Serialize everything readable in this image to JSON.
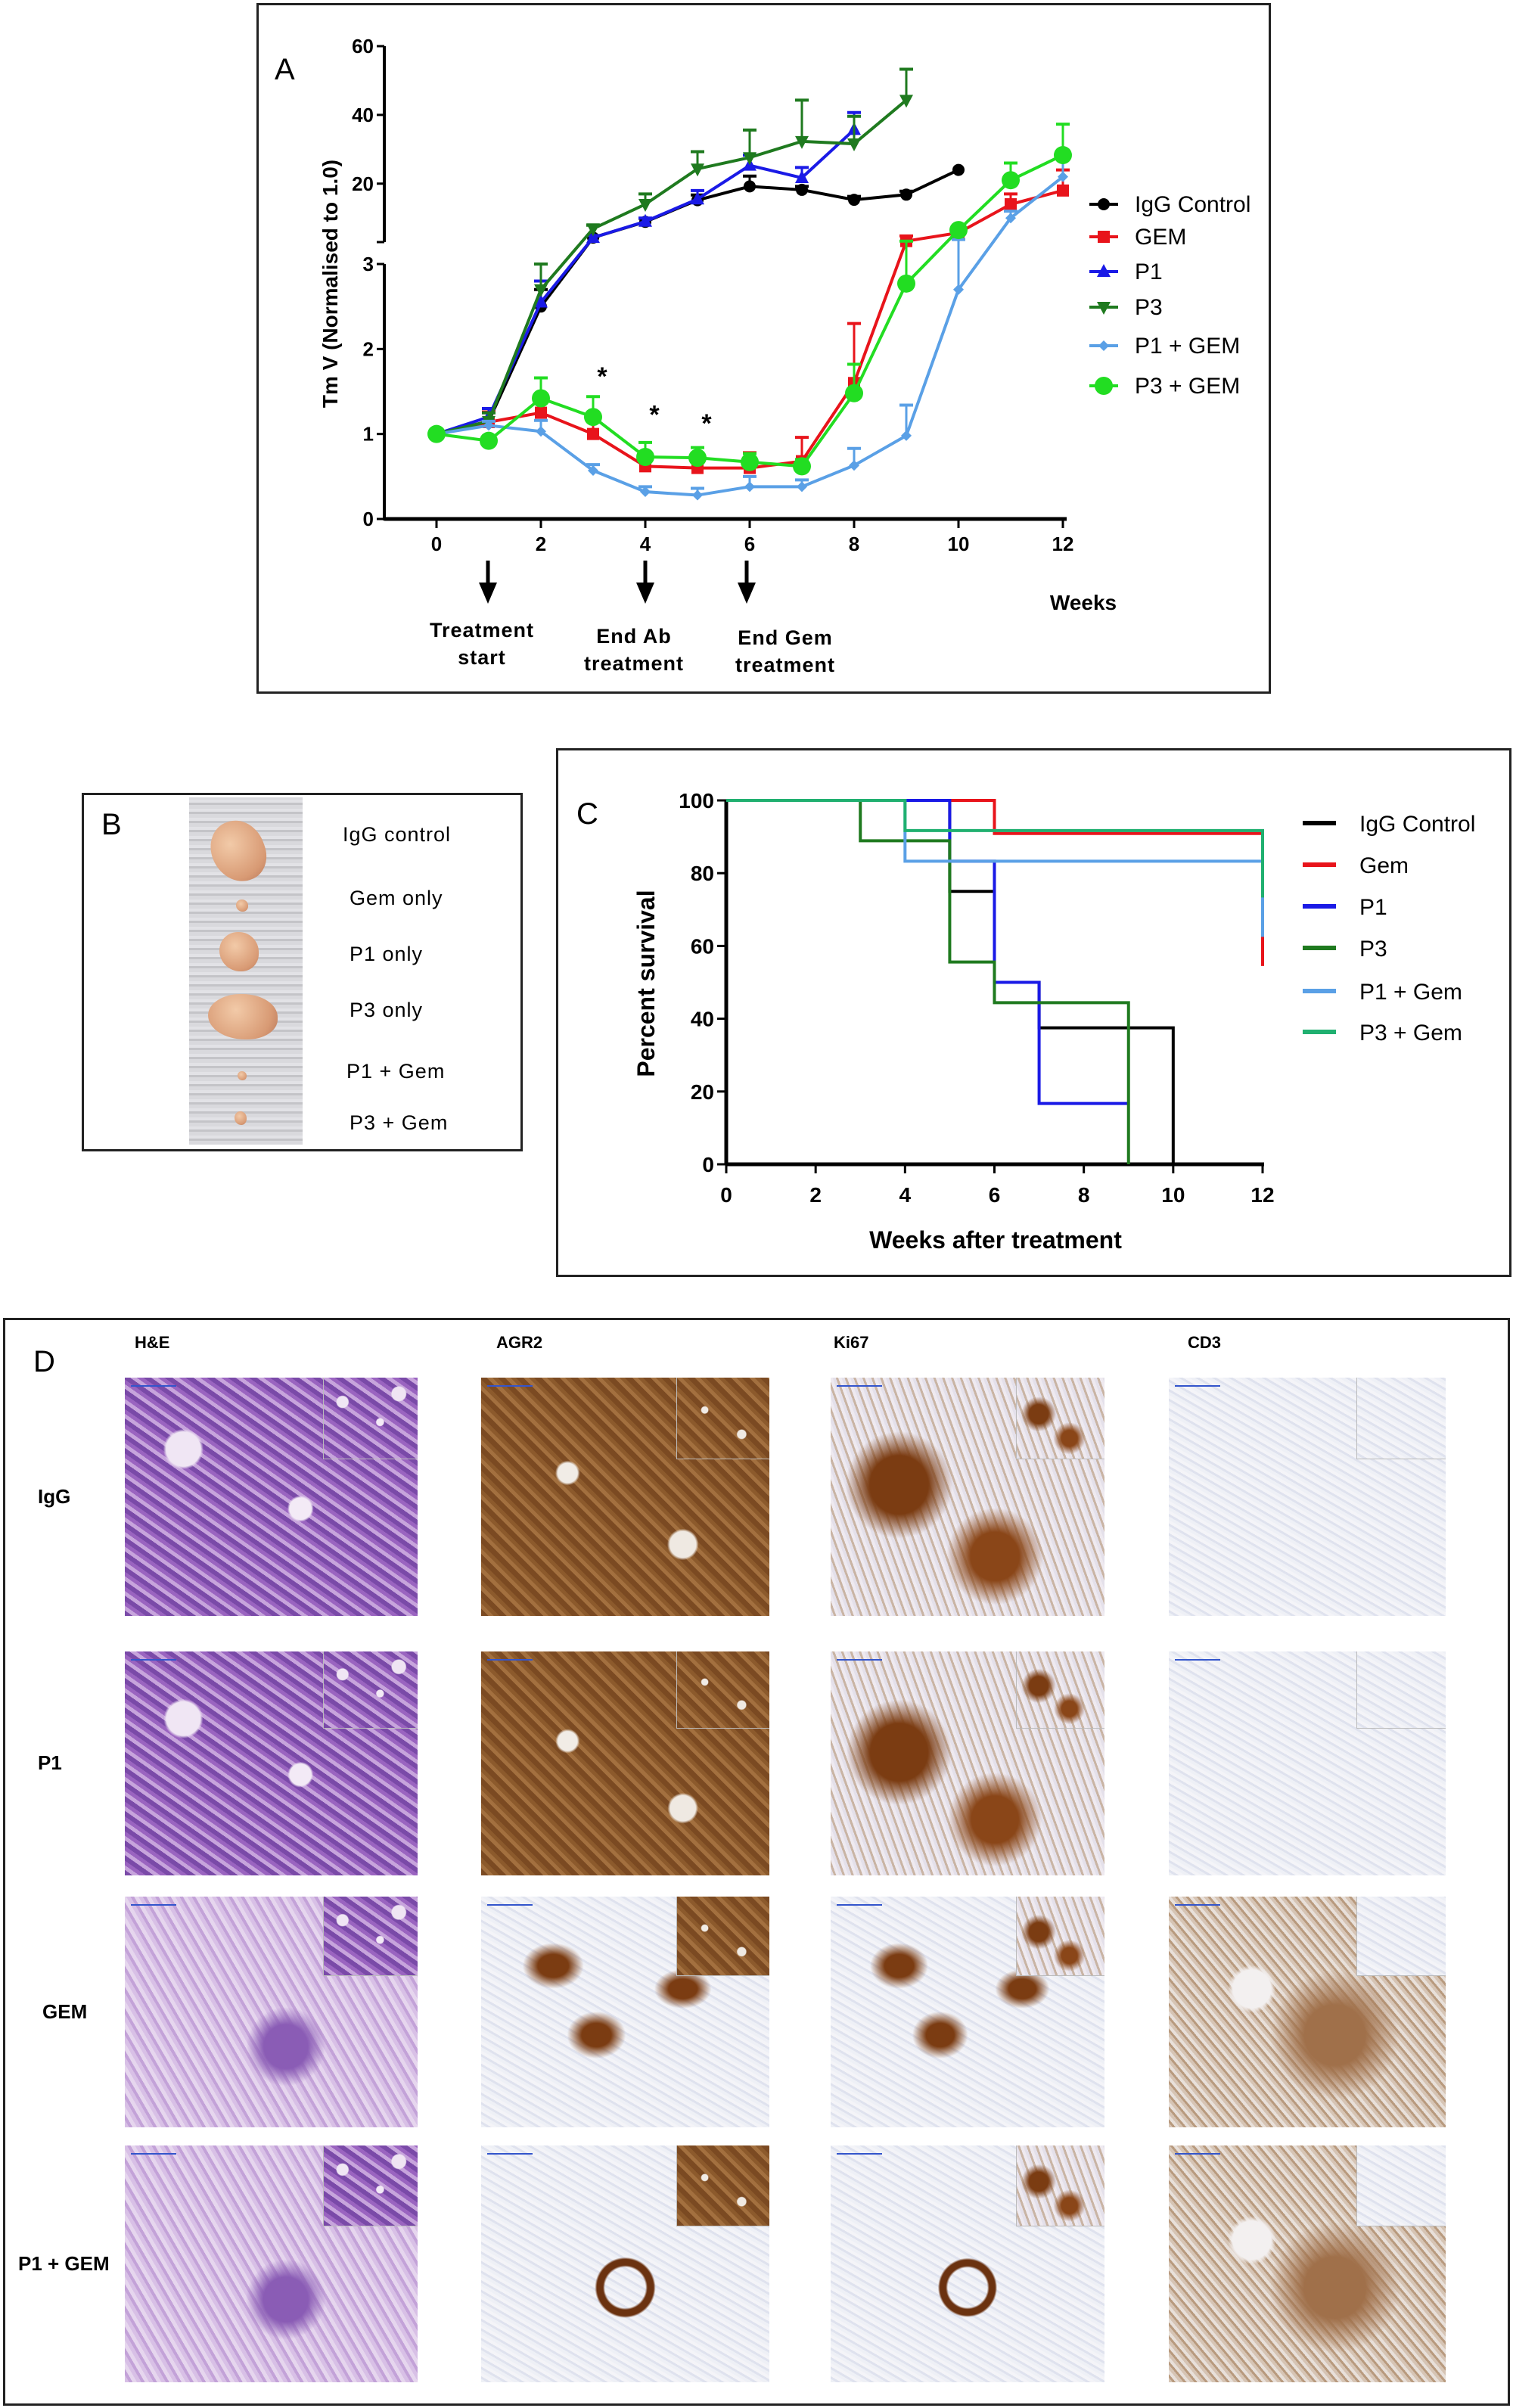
{
  "panel_labels": {
    "a": "A",
    "b": "B",
    "c": "C",
    "d": "D"
  },
  "colors": {
    "igg": "#000000",
    "gem": "#e8141b",
    "p1": "#1a1ae6",
    "p3": "#1f7a1f",
    "p1gem": "#5aa0e6",
    "p3gem": "#22dd22",
    "p3gem_c": "#20b070"
  },
  "chart_data": [
    {
      "type": "line",
      "panel": "A",
      "ylabel": "Tm V (Normalised to 1.0)",
      "xlabel": "Weeks",
      "x_ticks": [
        "0",
        "2",
        "4",
        "6",
        "8",
        "10",
        "12"
      ],
      "xlim": [
        0,
        12
      ],
      "y_axis_segments": [
        {
          "range": [
            0,
            3
          ],
          "ticks": [
            "0",
            "1",
            "2",
            "3"
          ]
        },
        {
          "range": [
            3,
            60
          ],
          "ticks": [
            "20",
            "40",
            "60"
          ]
        }
      ],
      "annotations_significance": [
        {
          "x": 3,
          "y": 1.7,
          "text": "*"
        },
        {
          "x": 4,
          "y": 1.25,
          "text": "*"
        },
        {
          "x": 5,
          "y": 1.15,
          "text": "*"
        }
      ],
      "timeline": [
        {
          "x": 1,
          "label_lines": [
            "Treatment",
            "start"
          ]
        },
        {
          "x": 4,
          "label_lines": [
            "End Ab",
            "treatment"
          ]
        },
        {
          "x": 6,
          "label_lines": [
            "End Gem",
            "treatment"
          ]
        }
      ],
      "series": [
        {
          "name": "IgG Control",
          "color_key": "igg",
          "marker": "circle",
          "x": [
            0,
            1,
            2,
            3,
            4,
            5,
            6,
            7,
            8,
            9,
            10
          ],
          "y": [
            1,
            1.15,
            2.5,
            4.3,
            8.9,
            15.2,
            19.2,
            18.2,
            15.3,
            16.8,
            24
          ],
          "err": [
            0,
            0.1,
            0.2,
            0.5,
            1,
            1.5,
            3,
            1,
            1,
            1,
            0
          ]
        },
        {
          "name": "GEM",
          "color_key": "gem",
          "marker": "square",
          "x": [
            0,
            1,
            2,
            3,
            4,
            5,
            6,
            7,
            8,
            9,
            10,
            11,
            12
          ],
          "y": [
            1,
            1.14,
            1.25,
            1.0,
            0.62,
            0.6,
            0.6,
            0.68,
            1.6,
            3.3,
            5.7,
            14,
            18
          ],
          "err": [
            0,
            0.12,
            0.14,
            0.18,
            0.08,
            0.09,
            0.18,
            0.28,
            0.7,
            1.5,
            1,
            3,
            6
          ]
        },
        {
          "name": "P1",
          "color_key": "p1",
          "marker": "triangle-up",
          "x": [
            0,
            1,
            2,
            3,
            4,
            5,
            6,
            7,
            8
          ],
          "y": [
            1,
            1.2,
            2.55,
            4.3,
            9,
            15.5,
            25.3,
            21.7,
            35.7
          ],
          "err": [
            0,
            0.1,
            0.25,
            0.6,
            1,
            2.5,
            3,
            3,
            5
          ]
        },
        {
          "name": "P3",
          "color_key": "p3",
          "marker": "triangle-down",
          "x": [
            0,
            1,
            2,
            3,
            4,
            5,
            6,
            7,
            8,
            9
          ],
          "y": [
            1,
            1.15,
            2.7,
            6.9,
            14,
            24.3,
            27.6,
            32.3,
            31.6,
            44.3
          ],
          "err": [
            0,
            0.1,
            0.3,
            1,
            3,
            5,
            8,
            12,
            8,
            9
          ]
        },
        {
          "name": "P1 + GEM",
          "color_key": "p1gem",
          "marker": "diamond",
          "x": [
            0,
            1,
            2,
            3,
            4,
            5,
            6,
            7,
            8,
            9,
            10,
            11,
            12
          ],
          "y": [
            1,
            1.1,
            1.03,
            0.57,
            0.32,
            0.28,
            0.38,
            0.38,
            0.63,
            0.98,
            2.7,
            10,
            22
          ],
          "err": [
            0,
            0.05,
            0.13,
            0.07,
            0.06,
            0.08,
            0.12,
            0.08,
            0.2,
            0.36,
            1.05,
            2,
            6
          ]
        },
        {
          "name": "P3 + GEM",
          "color_key": "p3gem",
          "marker": "circle-large",
          "x": [
            0,
            1,
            2,
            3,
            4,
            5,
            6,
            7,
            8,
            9,
            10,
            11,
            12
          ],
          "y": [
            1,
            0.92,
            1.42,
            1.2,
            0.73,
            0.72,
            0.67,
            0.62,
            1.48,
            2.77,
            6.5,
            21,
            28.3
          ],
          "err": [
            0,
            0.05,
            0.24,
            0.24,
            0.17,
            0.12,
            0.1,
            0.08,
            0.34,
            0.5,
            1,
            5,
            9
          ]
        }
      ]
    },
    {
      "type": "line",
      "subtype": "kaplan-meier-step",
      "panel": "C",
      "ylabel": "Percent survival",
      "xlabel": "Weeks after treatment",
      "x_ticks": [
        "0",
        "2",
        "4",
        "6",
        "8",
        "10",
        "12"
      ],
      "y_ticks": [
        "0",
        "20",
        "40",
        "60",
        "80",
        "100"
      ],
      "xlim": [
        0,
        12
      ],
      "ylim": [
        0,
        100
      ],
      "series": [
        {
          "name": "IgG Control",
          "color_key": "igg",
          "steps": [
            [
              0,
              100
            ],
            [
              5,
              75
            ],
            [
              6,
              50
            ],
            [
              7,
              37.5
            ],
            [
              10,
              0
            ]
          ],
          "end": 10
        },
        {
          "name": "Gem",
          "color_key": "gem",
          "steps": [
            [
              0,
              100
            ],
            [
              6,
              90.9
            ],
            [
              12,
              54.5
            ]
          ],
          "end": 12
        },
        {
          "name": "P1",
          "color_key": "p1",
          "steps": [
            [
              0,
              100
            ],
            [
              5,
              83.3
            ],
            [
              6,
              50
            ],
            [
              7,
              16.7
            ]
          ],
          "end": 9
        },
        {
          "name": "P3",
          "color_key": "p3",
          "steps": [
            [
              0,
              100
            ],
            [
              3,
              88.9
            ],
            [
              5,
              55.6
            ],
            [
              6,
              44.4
            ],
            [
              9,
              0
            ]
          ],
          "end": 9
        },
        {
          "name": "P1 + Gem",
          "color_key": "p1gem",
          "steps": [
            [
              0,
              100
            ],
            [
              4,
              83.3
            ],
            [
              12,
              62.5
            ]
          ],
          "end": 12
        },
        {
          "name": "P3 + Gem",
          "color_key": "p3gem_c",
          "steps": [
            [
              0,
              100
            ],
            [
              4,
              91.7
            ],
            [
              12,
              73.3
            ]
          ],
          "end": 12
        }
      ]
    }
  ],
  "panel_b": {
    "labels": [
      "IgG  control",
      "Gem  only",
      "P1 only",
      "P3 only",
      "P1 + Gem",
      "P3 + Gem"
    ]
  },
  "panel_d": {
    "columns": [
      "H&E",
      "AGR2",
      "Ki67",
      "CD3"
    ],
    "rows": [
      "IgG",
      "P1",
      "GEM",
      "P1 + GEM"
    ]
  }
}
